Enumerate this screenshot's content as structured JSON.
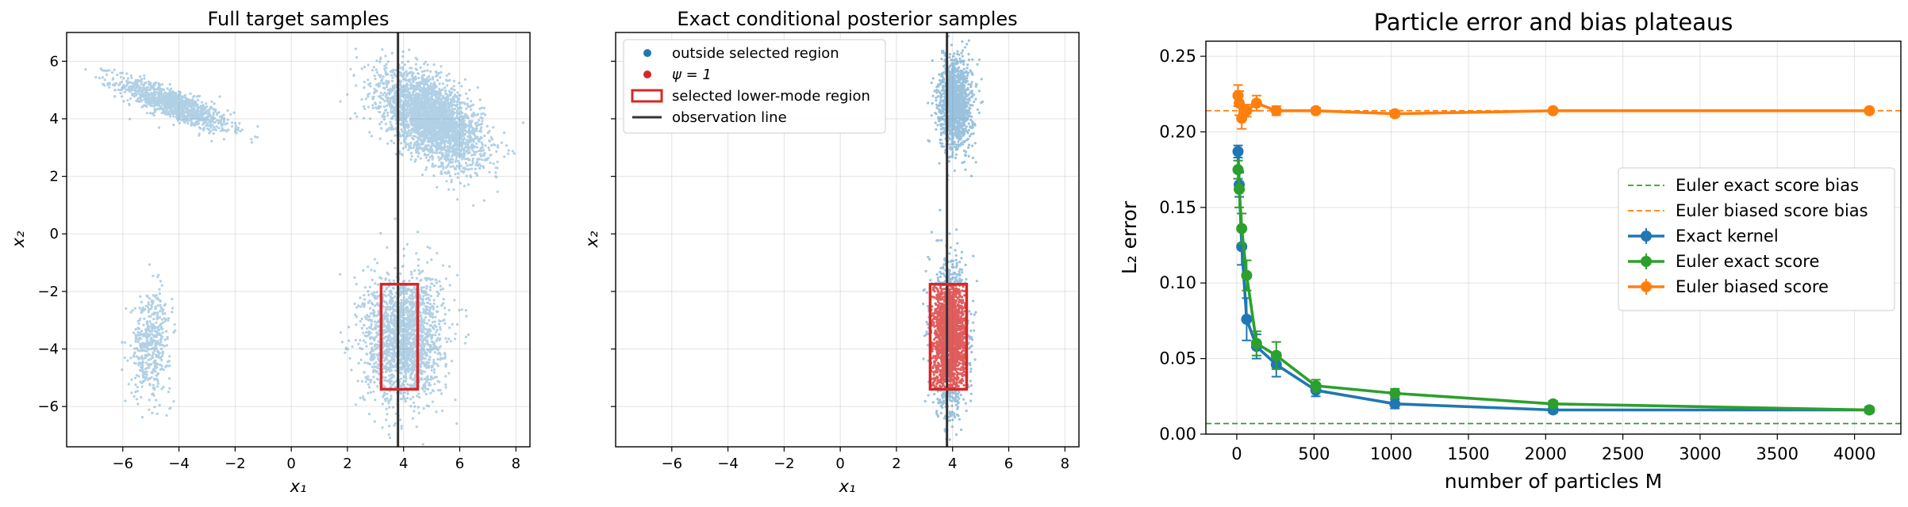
{
  "colors": {
    "blue": "#1f77b4",
    "red": "#d62728",
    "green": "#2ca02c",
    "orange": "#ff7f0e",
    "obs_line": "#333333"
  },
  "chart_data": [
    {
      "type": "scatter",
      "title": "Full target samples",
      "xlabel": "x₁",
      "ylabel": "x₂",
      "xlim": [
        -8,
        8.5
      ],
      "ylim": [
        -7.4,
        7
      ],
      "xticks": [
        -6,
        -4,
        -2,
        0,
        2,
        4,
        6,
        8
      ],
      "yticks": [
        -6,
        -4,
        -2,
        0,
        2,
        4,
        6
      ],
      "xtick_labels": [
        "−6",
        "−4",
        "−2",
        "0",
        "2",
        "4",
        "6",
        "8"
      ],
      "ytick_labels": [
        "−6",
        "−4",
        "−2",
        "0",
        "2",
        "4",
        "6"
      ],
      "grid": true,
      "clusters": [
        {
          "center": [
            -4.2,
            4.5
          ],
          "std": [
            1.0,
            0.45
          ],
          "rho": -0.82,
          "n": 1100
        },
        {
          "center": [
            5.0,
            4.0
          ],
          "std": [
            0.9,
            0.8
          ],
          "rho": -0.55,
          "n": 3000
        },
        {
          "center": [
            -5.0,
            -3.8
          ],
          "std": [
            0.35,
            0.9
          ],
          "rho": 0.1,
          "n": 450
        },
        {
          "center": [
            4.0,
            -3.6
          ],
          "std": [
            0.7,
            1.1
          ],
          "rho": 0.05,
          "n": 2000
        }
      ],
      "observation_line_x": 3.8,
      "selected_region": {
        "x": [
          3.2,
          4.5
        ],
        "y": [
          -5.4,
          -1.75
        ]
      }
    },
    {
      "type": "scatter",
      "title": "Exact conditional posterior samples",
      "xlabel": "x₁",
      "ylabel": "x₂",
      "xlim": [
        -8,
        8.5
      ],
      "ylim": [
        -7.4,
        7
      ],
      "xticks": [
        -6,
        -4,
        -2,
        0,
        2,
        4,
        6,
        8
      ],
      "yticks": [
        -6,
        -4,
        -2,
        0,
        2,
        4,
        6
      ],
      "xtick_labels": [
        "−6",
        "−4",
        "−2",
        "0",
        "2",
        "4",
        "6",
        "8"
      ],
      "ytick_labels": [],
      "grid": true,
      "clusters": [
        {
          "center": [
            4.1,
            4.5
          ],
          "std": [
            0.3,
            0.8
          ],
          "rho": 0.0,
          "n": 1300
        },
        {
          "center": [
            3.9,
            -3.6
          ],
          "std": [
            0.3,
            1.15
          ],
          "rho": 0.0,
          "n": 2200
        }
      ],
      "observation_line_x": 3.8,
      "selected_region": {
        "x": [
          3.2,
          4.5
        ],
        "y": [
          -5.4,
          -1.75
        ]
      },
      "legend": {
        "placement": "top-left",
        "entries": [
          {
            "label": "outside selected region",
            "kind": "dot",
            "color": "#1f77b4"
          },
          {
            "label": "ψ = 1",
            "kind": "dot",
            "color": "#d62728"
          },
          {
            "label": "selected lower-mode region",
            "kind": "rect",
            "color": "#d62728"
          },
          {
            "label": "observation line",
            "kind": "line",
            "color": "#333333"
          }
        ]
      }
    },
    {
      "type": "line",
      "title": "Particle error and bias plateaus",
      "xlabel": "number of particles M",
      "ylabel": "L₂ error",
      "xlim": [
        -200,
        4300
      ],
      "ylim": [
        0,
        0.26
      ],
      "xticks": [
        0,
        500,
        1000,
        1500,
        2000,
        2500,
        3000,
        3500,
        4000
      ],
      "yticks": [
        0,
        0.05,
        0.1,
        0.15,
        0.2,
        0.25
      ],
      "xtick_labels": [
        "0",
        "500",
        "1000",
        "1500",
        "2000",
        "2500",
        "3000",
        "3500",
        "4000"
      ],
      "ytick_labels": [
        "0.00",
        "0.05",
        "0.10",
        "0.15",
        "0.20",
        "0.25"
      ],
      "grid": true,
      "x": [
        8,
        16,
        32,
        64,
        128,
        256,
        512,
        1024,
        2048,
        4096
      ],
      "series": [
        {
          "name": "Exact kernel",
          "color": "#1f77b4",
          "values": [
            0.187,
            0.165,
            0.124,
            0.076,
            0.058,
            0.046,
            0.029,
            0.02,
            0.016,
            0.016
          ],
          "errors": [
            0.004,
            0.008,
            0.012,
            0.014,
            0.008,
            0.008,
            0.004,
            0.003,
            0.002,
            0.002
          ]
        },
        {
          "name": "Euler exact score",
          "color": "#2ca02c",
          "values": [
            0.175,
            0.162,
            0.136,
            0.105,
            0.06,
            0.052,
            0.032,
            0.027,
            0.02,
            0.016
          ],
          "errors": [
            0.006,
            0.012,
            0.01,
            0.01,
            0.008,
            0.009,
            0.004,
            0.003,
            0.002,
            0.002
          ]
        },
        {
          "name": "Euler biased score",
          "color": "#ff7f0e",
          "values": [
            0.224,
            0.219,
            0.209,
            0.214,
            0.219,
            0.214,
            0.214,
            0.212,
            0.214,
            0.214
          ],
          "errors": [
            0.007,
            0.008,
            0.007,
            0.004,
            0.005,
            0.003,
            0.002,
            0.002,
            0.001,
            0.001
          ]
        }
      ],
      "reference_lines": [
        {
          "name": "Euler exact score bias",
          "y": 0.007,
          "color": "#2ca02c"
        },
        {
          "name": "Euler biased score bias",
          "y": 0.214,
          "color": "#ff7f0e"
        }
      ],
      "legend": {
        "placement": "center-right",
        "entries": [
          {
            "label": "Euler exact score bias",
            "kind": "dashed",
            "color": "#2ca02c"
          },
          {
            "label": "Euler biased score bias",
            "kind": "dashed",
            "color": "#ff7f0e"
          },
          {
            "label": "Exact kernel",
            "kind": "errorline",
            "color": "#1f77b4"
          },
          {
            "label": "Euler exact score",
            "kind": "errorline",
            "color": "#2ca02c"
          },
          {
            "label": "Euler biased score",
            "kind": "errorline",
            "color": "#ff7f0e"
          }
        ]
      }
    }
  ]
}
